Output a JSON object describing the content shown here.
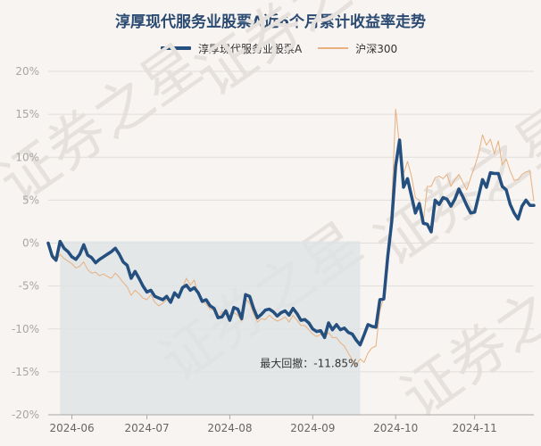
{
  "chart_data": {
    "type": "line",
    "title": "淳厚现代服务业股票A近6个月累计收益率走势",
    "y_ticks": [
      "20%",
      "15%",
      "10%",
      "5%",
      "0%",
      "-5%",
      "-10%",
      "-15%",
      "-20%"
    ],
    "ylim": [
      -20,
      20
    ],
    "x_ticks": [
      "2024-06",
      "2024-07",
      "2024-08",
      "2024-09",
      "2024-10",
      "2024-11"
    ],
    "legend_position": "top",
    "grid": "horizontal",
    "annotation": "最大回撤：-11.85%",
    "watermark": "证券之星",
    "series": [
      {
        "name": "淳厚现代服务业股票A",
        "color": "#244f7e",
        "values": [
          0.0,
          -1.5,
          -2.0,
          0.2,
          -0.6,
          -1.0,
          -1.6,
          -1.9,
          -1.3,
          -0.2,
          -1.4,
          -1.7,
          -2.3,
          -1.9,
          -1.6,
          -1.3,
          -1.0,
          -0.6,
          -1.3,
          -2.2,
          -2.6,
          -4.1,
          -3.3,
          -4.1,
          -5.0,
          -5.7,
          -5.5,
          -6.2,
          -6.4,
          -6.6,
          -6.2,
          -6.9,
          -5.8,
          -6.3,
          -5.2,
          -4.9,
          -5.5,
          -5.2,
          -5.8,
          -6.8,
          -6.6,
          -7.3,
          -7.6,
          -8.7,
          -8.6,
          -7.9,
          -9.0,
          -7.5,
          -7.7,
          -8.8,
          -6.0,
          -6.2,
          -7.6,
          -8.7,
          -8.3,
          -7.8,
          -7.7,
          -8.0,
          -8.5,
          -8.1,
          -7.9,
          -8.4,
          -7.6,
          -8.2,
          -9.0,
          -8.9,
          -9.3,
          -10.0,
          -10.3,
          -10.2,
          -11.0,
          -9.3,
          -10.1,
          -9.5,
          -10.1,
          -9.9,
          -10.4,
          -10.6,
          -11.3,
          -11.85,
          -10.7,
          -9.5,
          -9.7,
          -9.8,
          -6.6,
          -6.5,
          -1.5,
          2.5,
          9.0,
          12.0,
          6.5,
          7.5,
          5.5,
          3.5,
          4.6,
          2.3,
          2.2,
          1.3,
          5.0,
          4.5,
          5.3,
          5.1,
          4.3,
          5.1,
          6.3,
          5.4,
          4.4,
          3.5,
          3.6,
          5.5,
          7.4,
          6.5,
          8.2,
          8.1,
          8.1,
          6.6,
          6.2,
          4.5,
          3.5,
          2.8,
          4.3,
          5.0,
          4.4,
          4.4
        ]
      },
      {
        "name": "沪深300",
        "color": "#e8b07f",
        "values": [
          0.0,
          -1.8,
          -2.1,
          -1.3,
          -1.8,
          -2.1,
          -2.4,
          -2.9,
          -2.7,
          -2.2,
          -3.1,
          -3.5,
          -3.4,
          -3.8,
          -3.6,
          -3.9,
          -4.1,
          -3.5,
          -4.0,
          -4.6,
          -5.1,
          -6.1,
          -5.5,
          -5.9,
          -6.4,
          -6.6,
          -6.0,
          -6.9,
          -7.3,
          -7.0,
          -6.6,
          -6.8,
          -6.1,
          -6.4,
          -5.2,
          -4.1,
          -4.9,
          -4.3,
          -6.1,
          -6.8,
          -7.1,
          -7.7,
          -7.8,
          -8.8,
          -8.0,
          -8.2,
          -8.9,
          -8.1,
          -8.4,
          -9.1,
          -6.5,
          -7.0,
          -8.2,
          -9.2,
          -8.8,
          -8.9,
          -8.4,
          -8.8,
          -9.1,
          -8.9,
          -8.6,
          -9.2,
          -8.4,
          -9.0,
          -9.6,
          -9.6,
          -10.1,
          -10.6,
          -10.9,
          -10.6,
          -11.1,
          -10.4,
          -11.0,
          -11.0,
          -11.6,
          -12.0,
          -12.8,
          -13.6,
          -14.2,
          -13.5,
          -13.9,
          -12.8,
          -12.2,
          -12.0,
          -7.9,
          -6.3,
          -1.6,
          4.5,
          15.6,
          11.3,
          8.1,
          9.5,
          7.8,
          5.3,
          5.0,
          2.4,
          6.6,
          6.6,
          7.6,
          7.8,
          7.5,
          8.0,
          6.6,
          7.4,
          8.0,
          7.1,
          6.2,
          7.6,
          8.9,
          10.4,
          12.6,
          11.4,
          12.1,
          10.4,
          11.9,
          9.1,
          9.8,
          8.4,
          7.3,
          7.4,
          8.0,
          8.3,
          8.4,
          4.9
        ]
      }
    ]
  }
}
